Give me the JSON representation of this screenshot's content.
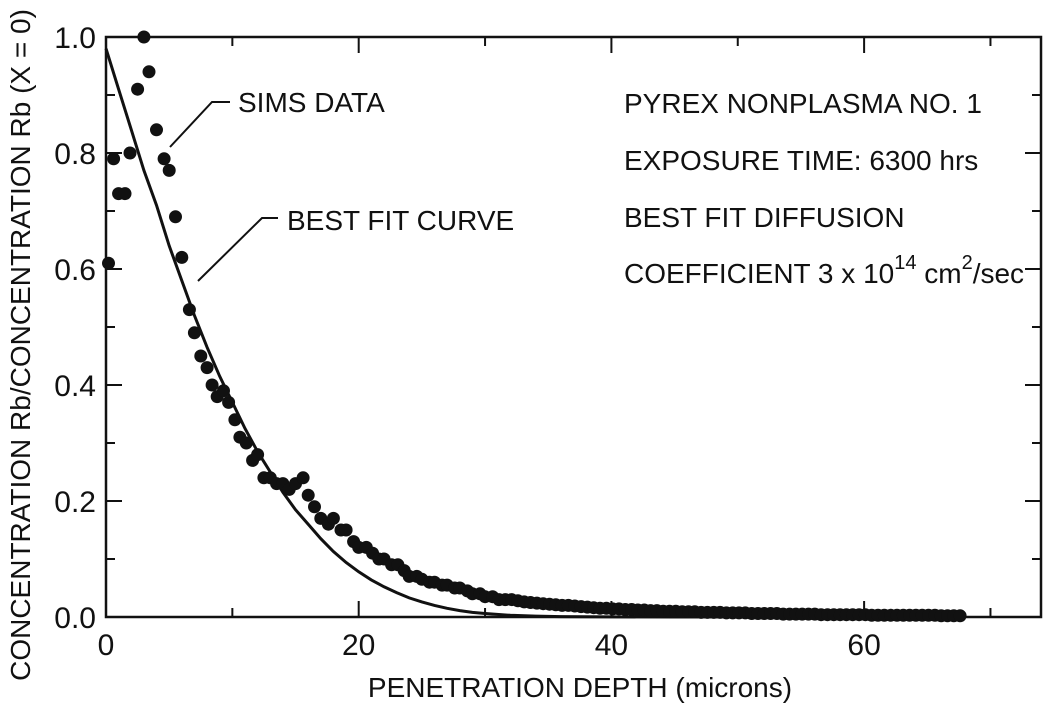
{
  "chart_data": {
    "type": "scatter",
    "title": "",
    "xlabel": "PENETRATION DEPTH (microns)",
    "ylabel": "CONCENTRATION Rb/CONCENTRATION Rb (X = 0)",
    "xlim": [
      0,
      74
    ],
    "ylim": [
      0,
      1.0
    ],
    "x_ticks": [
      0,
      20,
      40,
      60
    ],
    "x_tick_labels": [
      "0",
      "20",
      "40",
      "60"
    ],
    "y_ticks": [
      0.0,
      0.2,
      0.4,
      0.6,
      0.8,
      1.0
    ],
    "y_tick_labels": [
      "0.0",
      "0.2",
      "0.4",
      "0.6",
      "0.8",
      "1.0"
    ],
    "grid": false,
    "annotations": {
      "sims_label": "SIMS DATA",
      "fit_label": "BEST FIT CURVE",
      "info_line1": "PYREX NONPLASMA NO. 1",
      "info_line2": "EXPOSURE TIME: 6300 hrs",
      "info_line3": "BEST FIT DIFFUSION",
      "info_line4_prefix": "COEFFICIENT 3 x 10",
      "info_line4_exp": "14",
      "info_line4_unit": " cm",
      "info_line4_exp2": "2",
      "info_line4_suffix": "/sec"
    },
    "series": [
      {
        "type": "scatter",
        "x": [
          0.2,
          0.6,
          1.0,
          1.5,
          1.9,
          2.5,
          3.0,
          3.4,
          4.0,
          4.6,
          5.0,
          5.5,
          6.0,
          6.6,
          7.0,
          7.5,
          8.0,
          8.4,
          8.8,
          9.3,
          9.7,
          10.2,
          10.6,
          11.1,
          11.6,
          12.0,
          12.5,
          13.0,
          13.5,
          14.0,
          14.5,
          15.0,
          15.6,
          16.0,
          16.5,
          17.0,
          17.6,
          18.0,
          18.6,
          19.0,
          19.6,
          20.0,
          20.6,
          21.1,
          21.6,
          22.0,
          22.6,
          23.1,
          23.6,
          24.0,
          24.6,
          25.0,
          25.6,
          26.0,
          26.6,
          27.0,
          27.6,
          28.0,
          28.6,
          29.0,
          29.6,
          30.0,
          30.6,
          31.1,
          31.6,
          32.1,
          32.6,
          33.1,
          33.6,
          34.1,
          34.6,
          35.1,
          35.6,
          36.1,
          36.6,
          37.1,
          37.6,
          38.1,
          38.6,
          39.1,
          39.6,
          40.1,
          40.6,
          41.1,
          41.6,
          42.1,
          42.6,
          43.1,
          43.6,
          44.1,
          44.6,
          45.1,
          45.6,
          46.1,
          46.6,
          47.1,
          47.6,
          48.1,
          48.6,
          49.1,
          49.6,
          50.1,
          50.6,
          51.1,
          51.6,
          52.1,
          52.6,
          53.1,
          53.6,
          54.1,
          54.6,
          55.1,
          55.6,
          56.1,
          56.6,
          57.1,
          57.6,
          58.1,
          58.6,
          59.1,
          59.6,
          60.1,
          60.6,
          61.1,
          61.6,
          62.1,
          62.6,
          63.1,
          63.6,
          64.1,
          64.6,
          65.1,
          65.6,
          66.1,
          66.6,
          67.1,
          67.6
        ],
        "y": [
          0.61,
          0.79,
          0.73,
          0.73,
          0.8,
          0.91,
          1.0,
          0.94,
          0.84,
          0.79,
          0.77,
          0.69,
          0.62,
          0.53,
          0.49,
          0.45,
          0.43,
          0.4,
          0.38,
          0.39,
          0.37,
          0.34,
          0.31,
          0.3,
          0.27,
          0.28,
          0.24,
          0.24,
          0.23,
          0.23,
          0.22,
          0.23,
          0.24,
          0.21,
          0.19,
          0.17,
          0.16,
          0.17,
          0.15,
          0.15,
          0.13,
          0.12,
          0.12,
          0.11,
          0.1,
          0.1,
          0.09,
          0.09,
          0.08,
          0.07,
          0.07,
          0.065,
          0.06,
          0.06,
          0.055,
          0.055,
          0.05,
          0.05,
          0.045,
          0.04,
          0.04,
          0.035,
          0.035,
          0.03,
          0.03,
          0.03,
          0.028,
          0.026,
          0.025,
          0.024,
          0.023,
          0.022,
          0.021,
          0.02,
          0.02,
          0.019,
          0.018,
          0.017,
          0.016,
          0.015,
          0.015,
          0.014,
          0.014,
          0.013,
          0.013,
          0.012,
          0.012,
          0.011,
          0.011,
          0.01,
          0.01,
          0.01,
          0.009,
          0.009,
          0.009,
          0.008,
          0.008,
          0.008,
          0.008,
          0.007,
          0.007,
          0.007,
          0.007,
          0.006,
          0.006,
          0.006,
          0.006,
          0.006,
          0.005,
          0.005,
          0.005,
          0.005,
          0.005,
          0.005,
          0.004,
          0.004,
          0.004,
          0.004,
          0.004,
          0.004,
          0.004,
          0.004,
          0.003,
          0.003,
          0.003,
          0.003,
          0.003,
          0.003,
          0.003,
          0.003,
          0.003,
          0.003,
          0.003,
          0.002,
          0.002,
          0.002,
          0.002
        ]
      },
      {
        "type": "line",
        "x": [
          0,
          1,
          2,
          3,
          4,
          5,
          6,
          7,
          8,
          9,
          10,
          11,
          12,
          13,
          14,
          15,
          16,
          17,
          18,
          19,
          20,
          21,
          22,
          23,
          24,
          25,
          26,
          27,
          28,
          29,
          30,
          32,
          34,
          36,
          38,
          40,
          45,
          50,
          55,
          60,
          65,
          68
        ],
        "y": [
          0.98,
          0.91,
          0.84,
          0.77,
          0.71,
          0.64,
          0.58,
          0.52,
          0.465,
          0.415,
          0.37,
          0.325,
          0.285,
          0.25,
          0.215,
          0.185,
          0.16,
          0.135,
          0.113,
          0.094,
          0.078,
          0.064,
          0.052,
          0.042,
          0.033,
          0.026,
          0.02,
          0.015,
          0.011,
          0.008,
          0.006,
          0.003,
          0.0015,
          0.0007,
          0.0003,
          0.0001,
          0,
          0,
          0,
          0,
          0,
          0
        ]
      }
    ]
  }
}
